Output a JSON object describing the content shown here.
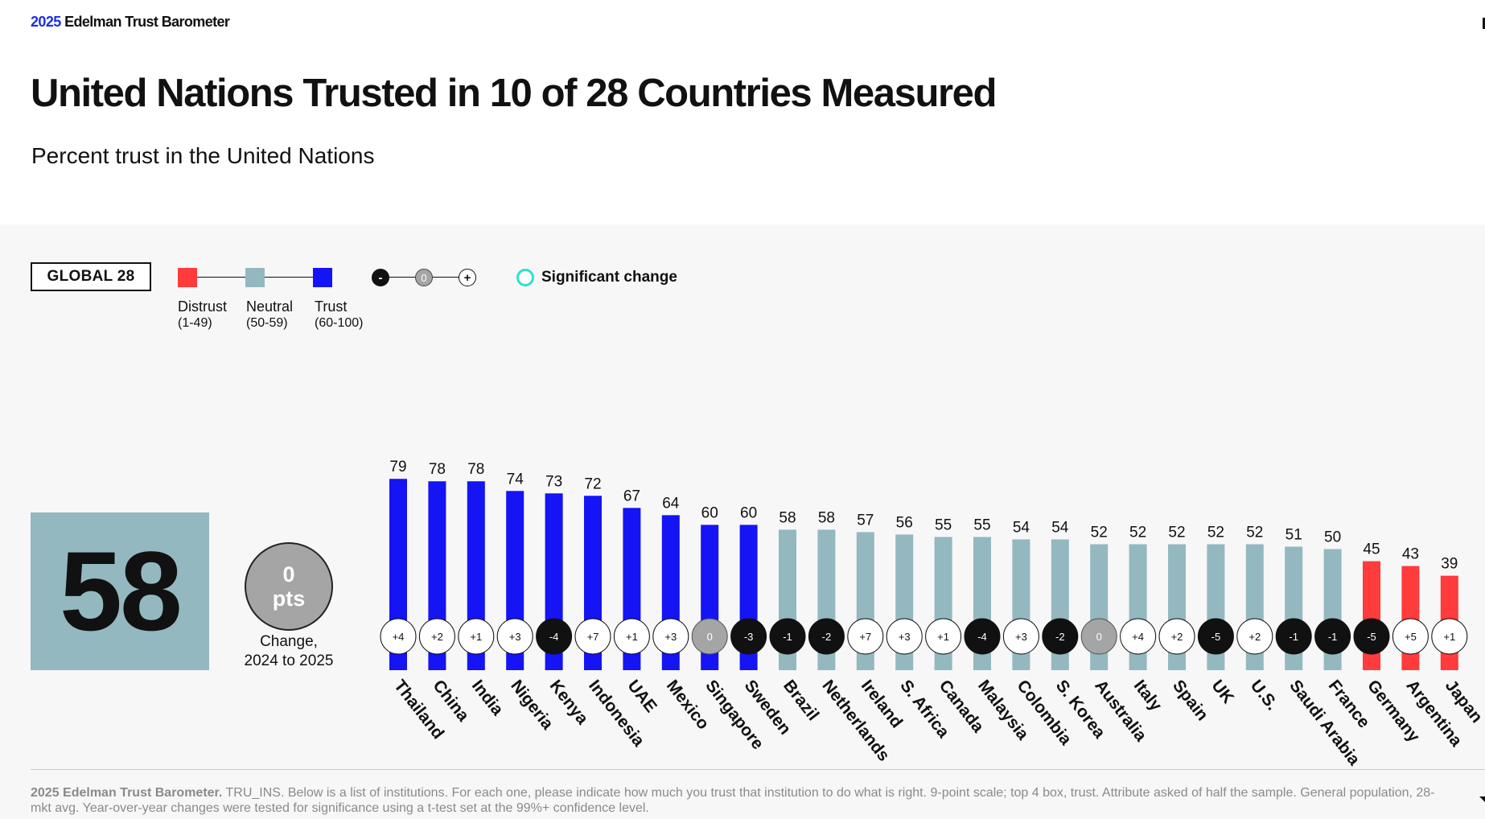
{
  "header": {
    "brand_year": "2025",
    "brand_name": "Edelman Trust Barometer",
    "title": "United Nations Trusted in 10 of 28 Countries Measured",
    "subtitle": "Percent trust in the United Nations"
  },
  "legend": {
    "global_label": "GLOBAL 28",
    "distrust_label": "Distrust",
    "distrust_range": "(1-49)",
    "distrust_color": "#ff3b3b",
    "neutral_label": "Neutral",
    "neutral_range": "(50-59)",
    "neutral_color": "#93b8c0",
    "trust_label": "Trust",
    "trust_range": "(60-100)",
    "trust_color": "#1414f5",
    "minus_symbol": "-",
    "zero_symbol": "0",
    "plus_symbol": "+",
    "significant_label": "Significant change",
    "significant_color": "#2de0d0"
  },
  "global": {
    "value": "58",
    "change_value": "0",
    "change_unit": "pts",
    "change_caption_line1": "Change,",
    "change_caption_line2": "2024 to 2025"
  },
  "chart_data": {
    "type": "bar",
    "title": "Percent trust in the United Nations",
    "ylim": [
      0,
      100
    ],
    "categories": [
      "Thailand",
      "China",
      "India",
      "Nigeria",
      "Kenya",
      "Indonesia",
      "UAE",
      "Mexico",
      "Singapore",
      "Sweden",
      "Brazil",
      "Netherlands",
      "Ireland",
      "S. Africa",
      "Canada",
      "Malaysia",
      "Colombia",
      "S. Korea",
      "Australia",
      "Italy",
      "Spain",
      "UK",
      "U.S.",
      "Saudi Arabia",
      "France",
      "Germany",
      "Argentina",
      "Japan"
    ],
    "values": [
      79,
      78,
      78,
      74,
      73,
      72,
      67,
      64,
      60,
      60,
      58,
      58,
      57,
      56,
      55,
      55,
      54,
      54,
      52,
      52,
      52,
      52,
      52,
      51,
      50,
      45,
      43,
      39
    ],
    "change_labels": [
      "+4",
      "+2",
      "+1",
      "+3",
      "-4",
      "+7",
      "+1",
      "+3",
      "0",
      "-3",
      "-1",
      "-2",
      "+7",
      "+3",
      "+1",
      "-4",
      "+3",
      "-2",
      "0",
      "+4",
      "+2",
      "-5",
      "+2",
      "-1",
      "-1",
      "-5",
      "+5",
      "+1"
    ],
    "change_values": [
      4,
      2,
      1,
      3,
      -4,
      7,
      1,
      3,
      0,
      -3,
      -1,
      -2,
      7,
      3,
      1,
      -4,
      3,
      -2,
      0,
      4,
      2,
      -5,
      2,
      -1,
      -1,
      -5,
      5,
      1
    ]
  },
  "footer": {
    "source_bold": "2025 Edelman Trust Barometer.",
    "source_text": " TRU_INS. Below is a list of institutions. For each one, please indicate how much you trust that institution to do what is right. 9-point scale; top 4 box, trust. Attribute asked of half the sample. General population, 28-mkt avg. Year-over-year changes were tested for significance using a t-test set at the 99%+ confidence level."
  }
}
